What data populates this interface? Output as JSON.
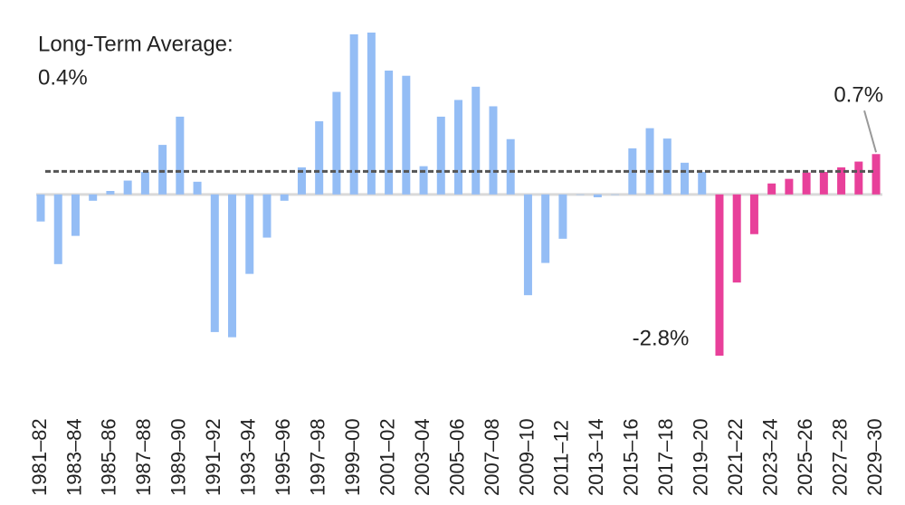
{
  "chart_data": {
    "type": "bar",
    "categories": [
      "1981–82",
      null,
      "1983–84",
      null,
      "1985–86",
      null,
      "1987–88",
      null,
      "1989–90",
      null,
      "1991–92",
      null,
      "1993–94",
      null,
      "1995–96",
      null,
      "1997–98",
      null,
      "1999–00",
      null,
      "2001–02",
      null,
      "2003–04",
      null,
      "2005–06",
      null,
      "2007–08",
      null,
      "2009–10",
      null,
      "2011–12",
      null,
      "2013–14",
      null,
      "2015–16",
      null,
      "2017–18",
      null,
      "2019–20",
      null,
      "2021–22",
      null,
      "2023–24",
      null,
      "2025–26",
      null,
      "2027–28",
      null,
      "2029–30"
    ],
    "values": [
      -0.47,
      -1.21,
      -0.72,
      -0.11,
      0.06,
      0.24,
      0.39,
      0.86,
      1.35,
      0.22,
      -2.39,
      -2.48,
      -1.38,
      -0.75,
      -0.11,
      0.47,
      1.27,
      1.78,
      2.78,
      2.81,
      2.15,
      2.06,
      0.49,
      1.35,
      1.64,
      1.87,
      1.53,
      0.96,
      -1.75,
      -1.19,
      -0.77,
      0,
      -0.05,
      0,
      0.8,
      1.15,
      0.97,
      0.55,
      0.39,
      -2.8,
      -1.53,
      -0.69,
      0.19,
      0.27,
      0.38,
      0.39,
      0.47,
      0.57,
      0.7
    ],
    "value_labels": [
      null,
      null,
      null,
      null,
      null,
      null,
      null,
      null,
      null,
      null,
      null,
      null,
      null,
      null,
      null,
      null,
      null,
      null,
      null,
      null,
      null,
      null,
      null,
      null,
      null,
      null,
      null,
      null,
      null,
      null,
      null,
      null,
      null,
      null,
      null,
      null,
      null,
      null,
      null,
      "-2.8%",
      null,
      null,
      null,
      null,
      null,
      null,
      null,
      null,
      "0.7%"
    ],
    "colors": [
      "#94bdf5",
      "#94bdf5",
      "#94bdf5",
      "#94bdf5",
      "#94bdf5",
      "#94bdf5",
      "#94bdf5",
      "#94bdf5",
      "#94bdf5",
      "#94bdf5",
      "#94bdf5",
      "#94bdf5",
      "#94bdf5",
      "#94bdf5",
      "#94bdf5",
      "#94bdf5",
      "#94bdf5",
      "#94bdf5",
      "#94bdf5",
      "#94bdf5",
      "#94bdf5",
      "#94bdf5",
      "#94bdf5",
      "#94bdf5",
      "#94bdf5",
      "#94bdf5",
      "#94bdf5",
      "#94bdf5",
      "#94bdf5",
      "#94bdf5",
      "#94bdf5",
      "#94bdf5",
      "#94bdf5",
      "#94bdf5",
      "#94bdf5",
      "#94bdf5",
      "#94bdf5",
      "#94bdf5",
      "#94bdf5",
      "#e8409a",
      "#e8409a",
      "#e8409a",
      "#e8409a",
      "#e8409a",
      "#e8409a",
      "#e8409a",
      "#e8409a",
      "#e8409a",
      "#e8409a"
    ],
    "average": {
      "label": "Long-Term Average:",
      "value": 0.4,
      "value_label": "0.4%",
      "color": "#555555"
    }
  }
}
